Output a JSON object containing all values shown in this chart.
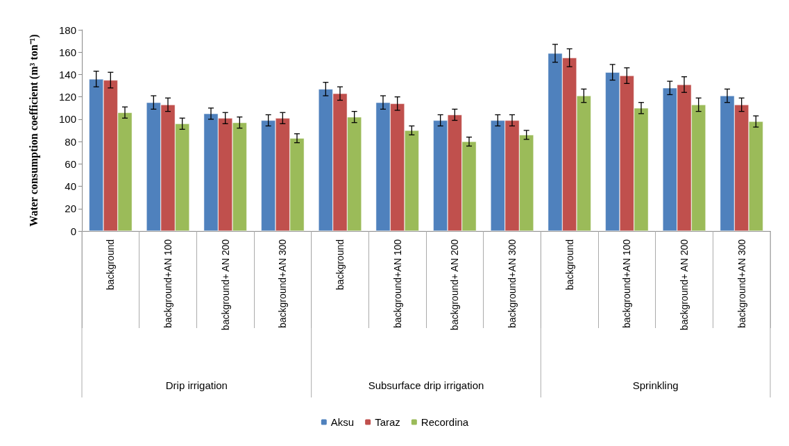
{
  "chart_data": {
    "type": "bar",
    "ylabel": "Water consumption coefficient (m³ ton⁻¹)",
    "categories": [
      "background",
      "background+AN 100",
      "background+ AN 200",
      "background+AN 300",
      "background",
      "background+AN 100",
      "background+ AN 200",
      "background+AN 300",
      "background",
      "background+AN 100",
      "background+ AN 200",
      "background+AN 300"
    ],
    "annotations": [
      "Drip irrigation",
      "Subsurface drip irrigation",
      "Sprinkling"
    ],
    "series": [
      {
        "name": "Aksu",
        "color": "#4f81bd",
        "values": [
          136,
          115,
          105,
          99,
          127,
          115,
          99,
          99,
          159,
          142,
          128,
          121
        ],
        "errors": [
          7,
          6,
          5,
          5,
          6,
          6,
          5,
          5,
          8,
          7,
          6,
          6
        ]
      },
      {
        "name": "Taraz",
        "color": "#c0504d",
        "values": [
          135,
          113,
          101,
          101,
          123,
          114,
          104,
          99,
          155,
          139,
          131,
          113
        ],
        "errors": [
          7,
          6,
          5,
          5,
          6,
          6,
          5,
          5,
          8,
          7,
          7,
          6
        ]
      },
      {
        "name": "Recordina",
        "color": "#9bbb59",
        "values": [
          106,
          96,
          97,
          83,
          102,
          90,
          80,
          86,
          121,
          110,
          113,
          98
        ],
        "errors": [
          5,
          5,
          5,
          4,
          5,
          4,
          4,
          4,
          6,
          5,
          6,
          5
        ]
      }
    ],
    "ylim": [
      0,
      180
    ],
    "yticks": [
      0,
      20,
      40,
      60,
      80,
      100,
      120,
      140,
      160,
      180
    ],
    "grid": false,
    "legend": "bottom"
  }
}
